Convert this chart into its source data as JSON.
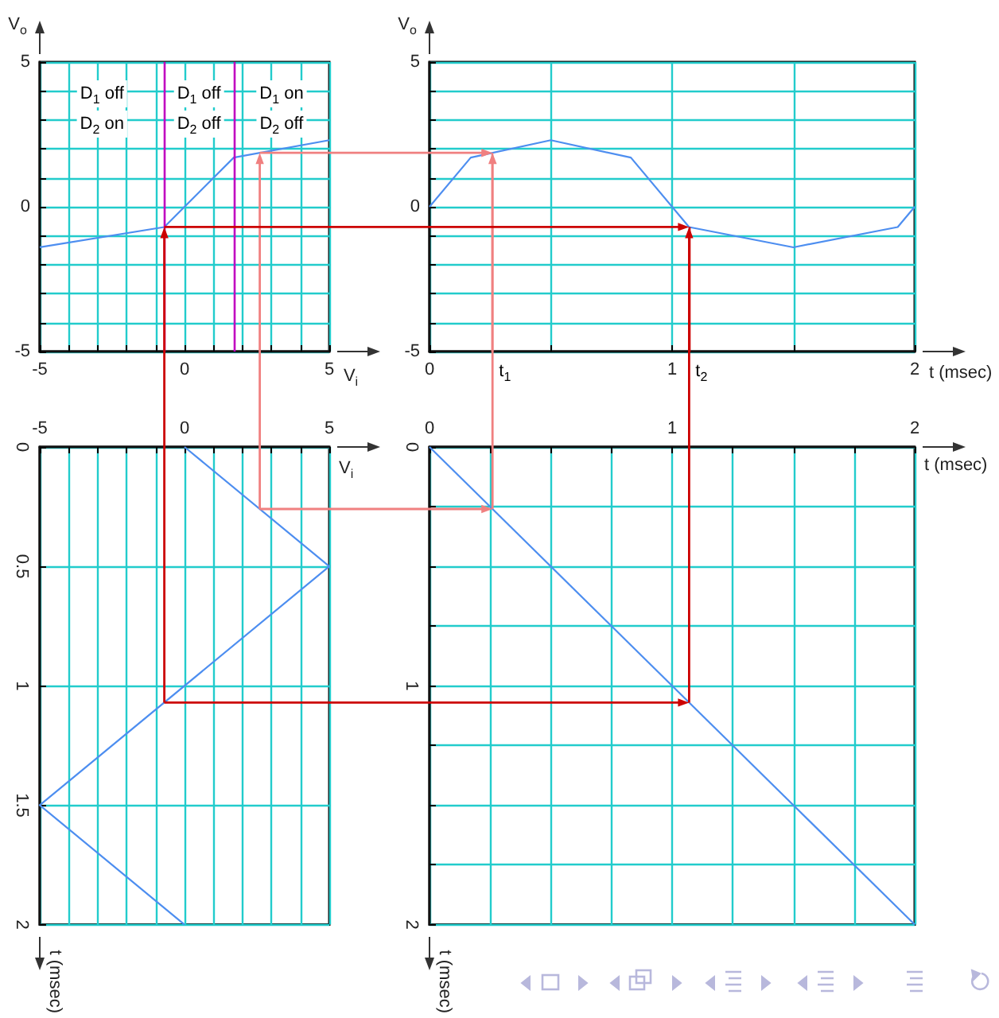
{
  "chart_data": [
    {
      "type": "line",
      "x": [
        -5,
        -0.7,
        1.7,
        5
      ],
      "values": [
        -1.4,
        -0.7,
        1.7,
        2.3
      ],
      "color": "#4d8ef0",
      "xlabel": "V$_{i}$",
      "ylabel": "V$_{o}$",
      "xlim": [
        -5,
        5
      ],
      "ylim": [
        -5,
        5
      ],
      "xticks": [
        -5,
        {
          "value": -4,
          "label": null
        },
        {
          "value": -3,
          "label": null
        },
        {
          "value": -2,
          "label": null
        },
        {
          "value": -1,
          "label": null
        },
        0,
        {
          "value": 1,
          "label": null
        },
        {
          "value": 2,
          "label": null
        },
        {
          "value": 3,
          "label": null
        },
        {
          "value": 4,
          "label": null
        },
        5
      ],
      "yticks": [
        -5,
        {
          "value": -4,
          "label": null
        },
        {
          "value": -3,
          "label": null
        },
        {
          "value": -2,
          "label": null
        },
        {
          "value": -1,
          "label": null
        },
        0,
        {
          "value": 1,
          "label": null
        },
        {
          "value": 2,
          "label": null
        },
        {
          "value": 3,
          "label": null
        },
        {
          "value": 4,
          "label": null
        },
        5
      ],
      "grid": true,
      "ref_lines": [
        {
          "axis": "x",
          "value": -0.7,
          "color": "#c000c0"
        },
        {
          "axis": "x",
          "value": 1.7,
          "color": "#c000c0"
        }
      ],
      "annotations": [
        "D$_{1}$ off",
        "D$_{2}$ on",
        "D$_{1}$ off",
        "D$_{2}$ off",
        "D$_{1}$ on",
        "D$_{2}$ off"
      ]
    },
    {
      "type": "line",
      "x": [
        0,
        0.17,
        0.5,
        0.83,
        1.07,
        1.5,
        1.93,
        2
      ],
      "values": [
        0,
        1.7,
        2.3,
        1.7,
        -0.7,
        -1.4,
        -0.7,
        0
      ],
      "color": "#4d8ef0",
      "xlabel": "t (msec)",
      "ylabel": "V$_{o}$",
      "xlim": [
        0,
        2
      ],
      "ylim": [
        -5,
        5
      ],
      "xticks": [
        0,
        {
          "value": 0.5,
          "label": null
        },
        1,
        {
          "value": 1.5,
          "label": null
        },
        2
      ],
      "yticks": [
        -5,
        {
          "value": -4,
          "label": null
        },
        {
          "value": -3,
          "label": null
        },
        {
          "value": -2,
          "label": null
        },
        {
          "value": -1,
          "label": null
        },
        0,
        {
          "value": 1,
          "label": null
        },
        {
          "value": 2,
          "label": null
        },
        {
          "value": 3,
          "label": null
        },
        {
          "value": 4,
          "label": null
        },
        5
      ],
      "grid": true,
      "ref_lines": [
        {
          "axis": "x",
          "value": 0.26,
          "label": "t$_{1}$",
          "color": "#f08080"
        },
        {
          "axis": "x",
          "value": 1.07,
          "label": "t$_{2}$",
          "color": "#cc0000"
        }
      ]
    },
    {
      "type": "line",
      "x": [
        0,
        5,
        -5,
        0
      ],
      "values": [
        0,
        0.5,
        1.5,
        2
      ],
      "color": "#4d8ef0",
      "xlabel": "V$_{i}$",
      "ylabel": "t (msec)",
      "xlim": [
        -5,
        5
      ],
      "ylim": [
        2,
        0
      ],
      "xticks": [
        -5,
        {
          "value": -4,
          "label": null
        },
        {
          "value": -3,
          "label": null
        },
        {
          "value": -2,
          "label": null
        },
        {
          "value": -1,
          "label": null
        },
        0,
        {
          "value": 1,
          "label": null
        },
        {
          "value": 2,
          "label": null
        },
        {
          "value": 3,
          "label": null
        },
        {
          "value": 4,
          "label": null
        },
        5
      ],
      "yticks": [
        0,
        0.5,
        1,
        1.5,
        2
      ],
      "grid": true
    },
    {
      "type": "line",
      "x": [
        0,
        2
      ],
      "values": [
        0,
        2
      ],
      "color": "#4d8ef0",
      "xlabel": "t (msec)",
      "ylabel": "t (msec)",
      "xlim": [
        0,
        2
      ],
      "ylim": [
        2,
        0
      ],
      "xticks": [
        0,
        {
          "value": 0.25,
          "label": null
        },
        {
          "value": 0.5,
          "label": null
        },
        {
          "value": 0.75,
          "label": null
        },
        1,
        {
          "value": 1.25,
          "label": null
        },
        {
          "value": 1.5,
          "label": null
        },
        {
          "value": 1.75,
          "label": null
        },
        2
      ],
      "yticks": [
        0,
        {
          "value": 0.25,
          "label": null
        },
        {
          "value": 0.5,
          "label": null
        },
        {
          "value": 0.75,
          "label": null
        },
        1,
        {
          "value": 1.25,
          "label": null
        },
        {
          "value": 1.5,
          "label": null
        },
        {
          "value": 1.75,
          "label": null
        },
        2
      ],
      "grid": true
    }
  ]
}
